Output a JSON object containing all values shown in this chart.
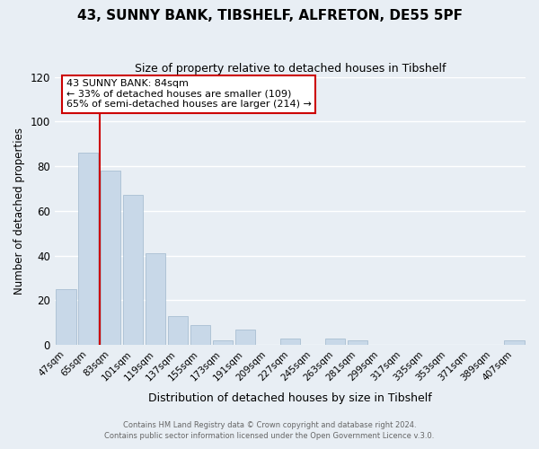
{
  "title": "43, SUNNY BANK, TIBSHELF, ALFRETON, DE55 5PF",
  "subtitle": "Size of property relative to detached houses in Tibshelf",
  "xlabel": "Distribution of detached houses by size in Tibshelf",
  "ylabel": "Number of detached properties",
  "bar_color": "#c8d8e8",
  "bar_edge_color": "#a0b8cc",
  "categories": [
    "47sqm",
    "65sqm",
    "83sqm",
    "101sqm",
    "119sqm",
    "137sqm",
    "155sqm",
    "173sqm",
    "191sqm",
    "209sqm",
    "227sqm",
    "245sqm",
    "263sqm",
    "281sqm",
    "299sqm",
    "317sqm",
    "335sqm",
    "353sqm",
    "371sqm",
    "389sqm",
    "407sqm"
  ],
  "values": [
    25,
    86,
    78,
    67,
    41,
    13,
    9,
    2,
    7,
    0,
    3,
    0,
    3,
    2,
    0,
    0,
    0,
    0,
    0,
    0,
    2
  ],
  "ylim": [
    0,
    120
  ],
  "yticks": [
    0,
    20,
    40,
    60,
    80,
    100,
    120
  ],
  "property_line_x": 1.5,
  "property_line_color": "#cc0000",
  "annotation_text": "43 SUNNY BANK: 84sqm\n← 33% of detached houses are smaller (109)\n65% of semi-detached houses are larger (214) →",
  "annotation_box_color": "#ffffff",
  "annotation_box_edge_color": "#cc0000",
  "footer_line1": "Contains HM Land Registry data © Crown copyright and database right 2024.",
  "footer_line2": "Contains public sector information licensed under the Open Government Licence v.3.0.",
  "background_color": "#e8eef4",
  "plot_bg_color": "#e8eef4",
  "grid_color": "#ffffff",
  "figsize": [
    6.0,
    5.0
  ],
  "dpi": 100
}
